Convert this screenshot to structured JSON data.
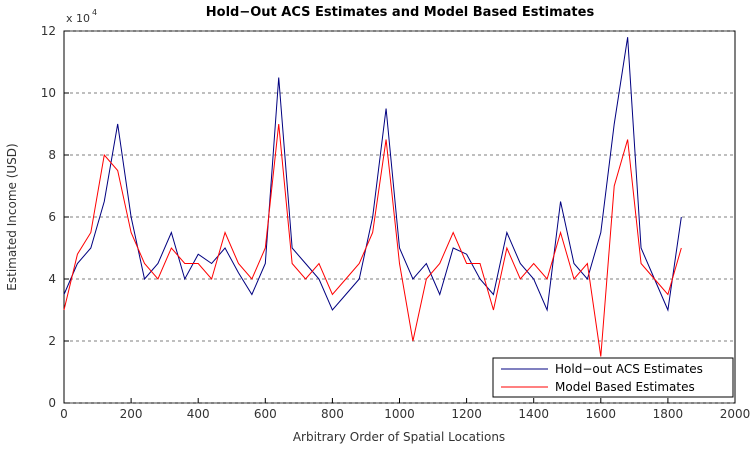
{
  "chart_data": {
    "type": "line",
    "title": "Hold−Out ACS Estimates and Model Based Estimates",
    "xlabel": "Arbitrary Order of Spatial Locations",
    "ylabel": "Estimated Income (USD)",
    "y_scale_base": "x 10",
    "y_scale_exponent": "4",
    "x": [
      0,
      40,
      80,
      120,
      160,
      200,
      240,
      280,
      320,
      360,
      400,
      440,
      480,
      520,
      560,
      600,
      640,
      680,
      720,
      760,
      800,
      840,
      880,
      920,
      960,
      1000,
      1040,
      1080,
      1120,
      1160,
      1200,
      1240,
      1280,
      1320,
      1360,
      1400,
      1440,
      1480,
      1520,
      1560,
      1600,
      1640,
      1680,
      1720,
      1760,
      1800,
      1840
    ],
    "series": [
      {
        "name": "Hold−out ACS Estimates",
        "color": "#000080",
        "values": [
          3.5,
          4.5,
          5.0,
          6.5,
          9.0,
          6.0,
          4.0,
          4.5,
          5.5,
          4.0,
          4.8,
          4.5,
          5.0,
          4.2,
          3.5,
          4.5,
          10.5,
          5.0,
          4.5,
          4.0,
          3.0,
          3.5,
          4.0,
          6.0,
          9.5,
          5.0,
          4.0,
          4.5,
          3.5,
          5.0,
          4.8,
          4.0,
          3.5,
          5.5,
          4.5,
          4.0,
          3.0,
          6.5,
          4.5,
          4.0,
          5.5,
          9.0,
          11.8,
          5.0,
          4.0,
          3.0,
          6.0
        ]
      },
      {
        "name": "Model Based Estimates",
        "color": "#ff0000",
        "values": [
          3.0,
          4.8,
          5.5,
          8.0,
          7.5,
          5.5,
          4.5,
          4.0,
          5.0,
          4.5,
          4.5,
          4.0,
          5.5,
          4.5,
          4.0,
          5.0,
          9.0,
          4.5,
          4.0,
          4.5,
          3.5,
          4.0,
          4.5,
          5.5,
          8.5,
          4.5,
          2.0,
          4.0,
          4.5,
          5.5,
          4.5,
          4.5,
          3.0,
          5.0,
          4.0,
          4.5,
          4.0,
          5.5,
          4.0,
          4.5,
          1.5,
          7.0,
          8.5,
          4.5,
          4.0,
          3.5,
          5.0
        ]
      }
    ],
    "xlim": [
      0,
      2000
    ],
    "xticks": [
      0,
      200,
      400,
      600,
      800,
      1000,
      1200,
      1400,
      1600,
      1800,
      2000
    ],
    "ylim": [
      0,
      12
    ],
    "yticks": [
      0,
      2,
      4,
      6,
      8,
      10,
      12
    ],
    "grid": "y",
    "legend": "lower right"
  }
}
